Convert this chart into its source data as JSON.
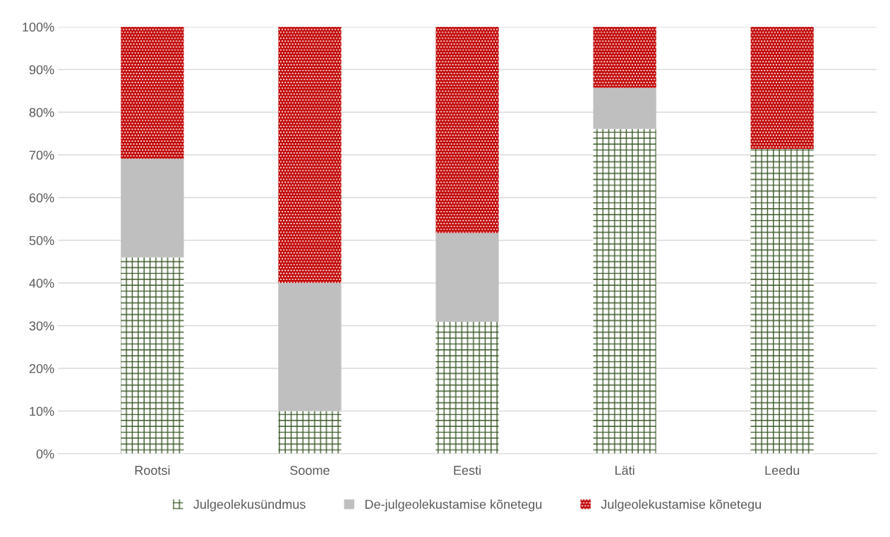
{
  "chart_data": {
    "type": "bar",
    "stacked": true,
    "categories": [
      "Rootsi",
      "Soome",
      "Eesti",
      "Läti",
      "Leedu"
    ],
    "series": [
      {
        "name": "Julgeolekusündmus",
        "color": "#375623",
        "values": [
          46,
          10,
          30.9,
          76.1,
          71.4
        ]
      },
      {
        "name": "De-julgeolekustamise kõnetegu",
        "color": "#bfbfbf",
        "values": [
          23.1,
          30,
          20.8,
          9.6,
          0
        ]
      },
      {
        "name": "Julgeolekustamise kõnetegu",
        "color": "#c00000",
        "values": [
          30.9,
          60,
          48.3,
          14.3,
          28.6
        ]
      }
    ],
    "ylim": [
      0,
      100
    ],
    "yticks": [
      {
        "value": 0,
        "label": "0%"
      },
      {
        "value": 10,
        "label": "10%"
      },
      {
        "value": 20,
        "label": "20%"
      },
      {
        "value": 30,
        "label": "30%"
      },
      {
        "value": 40,
        "label": "40%"
      },
      {
        "value": 50,
        "label": "50%"
      },
      {
        "value": 60,
        "label": "60%"
      },
      {
        "value": 70,
        "label": "70%"
      },
      {
        "value": 80,
        "label": "80%"
      },
      {
        "value": 90,
        "label": "90%"
      },
      {
        "value": 100,
        "label": "100%"
      }
    ],
    "grid": "y",
    "legend": "bottom"
  }
}
